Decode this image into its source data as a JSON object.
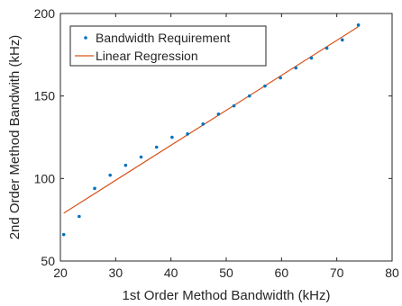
{
  "chart_data": {
    "type": "scatter",
    "xlabel": "1st Order Method Bandwidth (kHz)",
    "ylabel": "2nd Order Method Bandwith (kHz)",
    "xlim": [
      20,
      80
    ],
    "ylim": [
      50,
      200
    ],
    "xticks": [
      20,
      30,
      40,
      50,
      60,
      70,
      80
    ],
    "yticks": [
      50,
      100,
      150,
      200
    ],
    "grid": false,
    "legend_position": "top-left",
    "series": [
      {
        "name": "Bandwidth Requirement",
        "kind": "scatter",
        "color": "#0072BD",
        "x": [
          20.6,
          23.4,
          26.2,
          29.0,
          31.8,
          34.6,
          37.4,
          40.2,
          43.0,
          45.8,
          48.6,
          51.4,
          54.2,
          57.0,
          59.8,
          62.6,
          65.4,
          68.2,
          71.0,
          73.9
        ],
        "y": [
          66,
          77,
          94,
          102,
          108,
          113,
          119,
          125,
          127,
          133,
          139,
          144,
          150,
          156,
          161,
          167,
          173,
          179,
          184,
          193
        ]
      },
      {
        "name": "Linear Regression",
        "kind": "line",
        "color": "#D95319",
        "x": [
          20.6,
          73.9
        ],
        "y": [
          79,
          192
        ]
      }
    ]
  }
}
